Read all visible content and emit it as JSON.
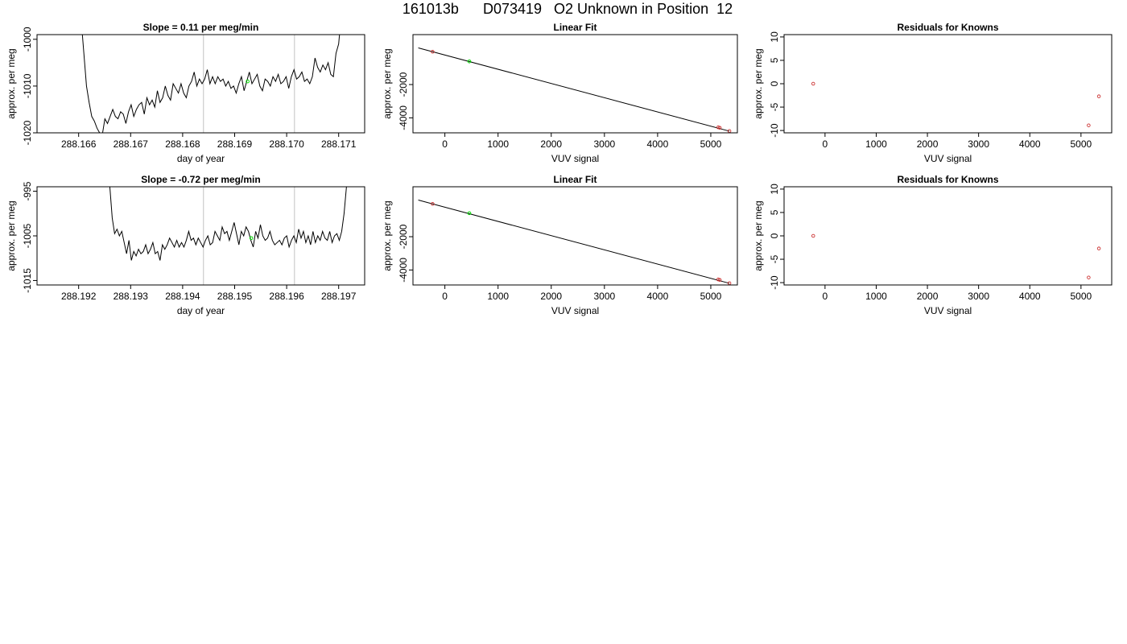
{
  "main_title": "161013b      D073419   O2 Unknown in Position  12",
  "colors": {
    "trace": "#000000",
    "vline": "#cccccc",
    "unknown_point": "#00dd00",
    "known_point": "#cc3333"
  },
  "chart_data": [
    {
      "type": "line",
      "title": "Slope =  0.11  per meg/min",
      "xlabel": "day of year",
      "ylabel": "approx. per meg",
      "xlim": [
        288.1652,
        288.1715
      ],
      "ylim": [
        -1020,
        -999
      ],
      "xticks": [
        288.166,
        288.167,
        288.168,
        288.169,
        288.17,
        288.171
      ],
      "xtick_labels": [
        "288.166",
        "288.167",
        "288.168",
        "288.169",
        "288.170",
        "288.171"
      ],
      "yticks": [
        -1020,
        -1010,
        -1000
      ],
      "ytick_labels": [
        "-1020",
        "-1010",
        "-1000"
      ],
      "vlines": [
        288.1684,
        288.17015
      ],
      "trace_start": 288.16605,
      "trace_end": 288.17105,
      "trace": [
        -996,
        -1003,
        -1010,
        -1013.5,
        -1016.5,
        -1017.5,
        -1019,
        -1020,
        -1020.5,
        -1017,
        -1018,
        -1016.5,
        -1015,
        -1016.5,
        -1017,
        -1015.5,
        -1016,
        -1018,
        -1015.5,
        -1014,
        -1016.5,
        -1015,
        -1014,
        -1013.5,
        -1016,
        -1012.5,
        -1014,
        -1013,
        -1014.5,
        -1011,
        -1013.5,
        -1012.5,
        -1010,
        -1012,
        -1013,
        -1009.5,
        -1010.5,
        -1011.5,
        -1009.5,
        -1011.5,
        -1012.5,
        -1010,
        -1009,
        -1007,
        -1010,
        -1008.5,
        -1009.5,
        -1008.5,
        -1006.5,
        -1009.5,
        -1008,
        -1009.5,
        -1008,
        -1009,
        -1008.5,
        -1010,
        -1009,
        -1010.5,
        -1010,
        -1011.5,
        -1009.5,
        -1008,
        -1011,
        -1009,
        -1007,
        -1009.5,
        -1008.5,
        -1007.5,
        -1010,
        -1011,
        -1008.5,
        -1009,
        -1010,
        -1008,
        -1009,
        -1007.5,
        -1009.5,
        -1009,
        -1008,
        -1010.5,
        -1008,
        -1006.5,
        -1008.5,
        -1008,
        -1007,
        -1009,
        -1008.5,
        -1009.5,
        -1008,
        -1004,
        -1006,
        -1007,
        -1005.5,
        -1006.5,
        -1005,
        -1007.5,
        -1008,
        -1003,
        -1001,
        -995
      ],
      "marker": {
        "x": 288.16925,
        "y": -1009
      }
    },
    {
      "type": "scatter",
      "title": "Linear Fit",
      "xlabel": "VUV signal",
      "ylabel": "approx. per meg",
      "xlim": [
        -600,
        5500
      ],
      "ylim": [
        -4900,
        1000
      ],
      "xticks": [
        0,
        1000,
        2000,
        3000,
        4000,
        5000
      ],
      "xtick_labels": [
        "0",
        "1000",
        "2000",
        "3000",
        "4000",
        "5000"
      ],
      "yticks": [
        -4000,
        -2000
      ],
      "ytick_labels": [
        "-4000",
        "-2000"
      ],
      "fit_line": [
        [
          -500,
          200
        ],
        [
          5350,
          -4800
        ]
      ],
      "known_points": [
        [
          -230,
          -30
        ],
        [
          5140,
          -4570
        ],
        [
          5170,
          -4600
        ],
        [
          5350,
          -4790
        ]
      ],
      "unknown_points": [
        [
          460,
          -610
        ]
      ]
    },
    {
      "type": "scatter",
      "title": "Residuals for Knowns",
      "xlabel": "VUV signal",
      "ylabel": "approx. per meg",
      "xlim": [
        -800,
        5600
      ],
      "ylim": [
        -10.5,
        10.5
      ],
      "xticks": [
        0,
        1000,
        2000,
        3000,
        4000,
        5000
      ],
      "xtick_labels": [
        "0",
        "1000",
        "2000",
        "3000",
        "4000",
        "5000"
      ],
      "yticks": [
        -10,
        -5,
        0,
        5,
        10
      ],
      "ytick_labels": [
        "-10",
        "-5",
        "0",
        "5",
        "10"
      ],
      "known_points": [
        [
          -230,
          0
        ],
        [
          5150,
          -8.9
        ],
        [
          5350,
          -2.7
        ]
      ]
    },
    {
      "type": "line",
      "title": "Slope =  -0.72  per meg/min",
      "xlabel": "day of year",
      "ylabel": "approx. per meg",
      "xlim": [
        288.1912,
        288.1975
      ],
      "ylim": [
        -1016,
        -994
      ],
      "xticks": [
        288.192,
        288.193,
        288.194,
        288.195,
        288.196,
        288.197
      ],
      "xtick_labels": [
        "288.192",
        "288.193",
        "288.194",
        "288.195",
        "288.196",
        "288.197"
      ],
      "yticks": [
        -1015,
        -1005,
        -995
      ],
      "ytick_labels": [
        "-1015",
        "-1005",
        "-995"
      ],
      "vlines": [
        288.1944,
        288.19615
      ],
      "trace_start": 288.1926,
      "trace_end": 288.19715,
      "trace": [
        -994,
        -1001,
        -1004.5,
        -1003.5,
        -1005,
        -1004,
        -1006.5,
        -1009,
        -1006,
        -1010.5,
        -1008.5,
        -1009.5,
        -1008,
        -1009,
        -1008.5,
        -1007,
        -1009,
        -1008,
        -1006.5,
        -1009,
        -1008.5,
        -1010.5,
        -1007,
        -1008,
        -1007,
        -1005.5,
        -1006.5,
        -1007.5,
        -1006,
        -1007.5,
        -1006.5,
        -1007.5,
        -1006,
        -1004,
        -1006,
        -1005.5,
        -1007,
        -1005.5,
        -1006.5,
        -1007.5,
        -1006,
        -1005,
        -1007,
        -1006.5,
        -1004,
        -1005,
        -1006,
        -1003,
        -1004.5,
        -1004,
        -1006,
        -1004,
        -1002,
        -1004.5,
        -1007,
        -1004,
        -1005,
        -1003,
        -1004,
        -1006,
        -1007.5,
        -1004,
        -1005.5,
        -1002.5,
        -1005,
        -1006,
        -1005.5,
        -1004,
        -1006,
        -1007,
        -1006.5,
        -1006,
        -1007,
        -1005.5,
        -1005,
        -1007.5,
        -1006,
        -1005,
        -1006.5,
        -1003.5,
        -1005.5,
        -1004,
        -1006.5,
        -1005,
        -1007,
        -1004,
        -1006.5,
        -1005,
        -1006,
        -1004,
        -1005.5,
        -1006,
        -1004,
        -1006.5,
        -1005,
        -1004.5,
        -1006,
        -1004,
        -1000,
        -994
      ],
      "marker": {
        "x": 288.19532,
        "y": -1005.5
      }
    },
    {
      "type": "scatter",
      "title": "Linear Fit",
      "xlabel": "VUV signal",
      "ylabel": "approx. per meg",
      "xlim": [
        -600,
        5500
      ],
      "ylim": [
        -4900,
        1000
      ],
      "xticks": [
        0,
        1000,
        2000,
        3000,
        4000,
        5000
      ],
      "xtick_labels": [
        "0",
        "1000",
        "2000",
        "3000",
        "4000",
        "5000"
      ],
      "yticks": [
        -4000,
        -2000
      ],
      "ytick_labels": [
        "-4000",
        "-2000"
      ],
      "fit_line": [
        [
          -500,
          200
        ],
        [
          5350,
          -4800
        ]
      ],
      "known_points": [
        [
          -230,
          -30
        ],
        [
          5140,
          -4570
        ],
        [
          5170,
          -4600
        ],
        [
          5350,
          -4790
        ]
      ],
      "unknown_points": [
        [
          460,
          -590
        ]
      ]
    },
    {
      "type": "scatter",
      "title": "Residuals for Knowns",
      "xlabel": "VUV signal",
      "ylabel": "approx. per meg",
      "xlim": [
        -800,
        5600
      ],
      "ylim": [
        -10.5,
        10.5
      ],
      "xticks": [
        0,
        1000,
        2000,
        3000,
        4000,
        5000
      ],
      "xtick_labels": [
        "0",
        "1000",
        "2000",
        "3000",
        "4000",
        "5000"
      ],
      "yticks": [
        -10,
        -5,
        0,
        5,
        10
      ],
      "ytick_labels": [
        "-10",
        "-5",
        "0",
        "5",
        "10"
      ],
      "known_points": [
        [
          -230,
          0
        ],
        [
          5150,
          -8.9
        ],
        [
          5350,
          -2.7
        ]
      ]
    }
  ]
}
